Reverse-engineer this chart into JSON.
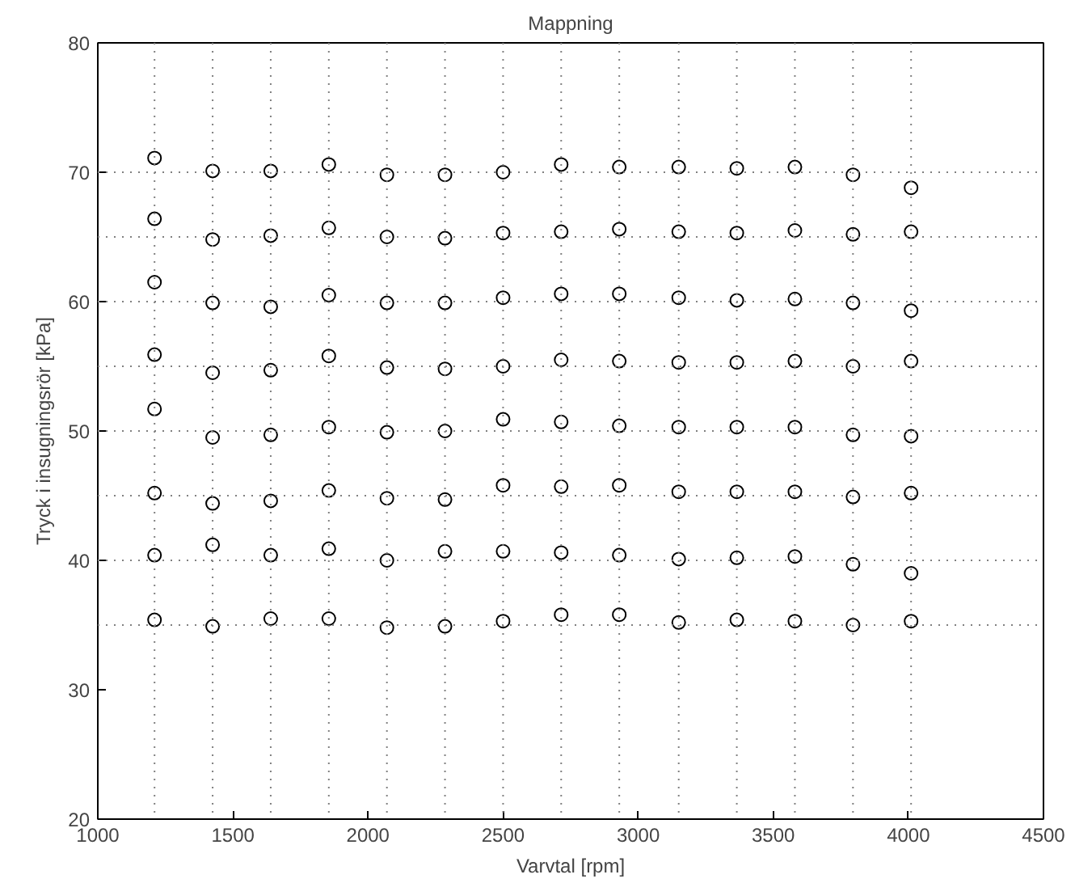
{
  "chart_data": {
    "type": "scatter",
    "title": "Mappning",
    "xlabel": "Varvtal [rpm]",
    "ylabel": "Tryck i insugningsrör [kPa]",
    "xlim": [
      1000,
      4500
    ],
    "xticks": [
      1000,
      1500,
      2000,
      2500,
      3000,
      3500,
      4000,
      4500
    ],
    "ylim": [
      20,
      80
    ],
    "yticks": [
      20,
      30,
      40,
      50,
      60,
      70,
      80
    ],
    "marker": "circle",
    "grid": false,
    "series": [
      {
        "color": "#000000",
        "x": [
          1210,
          1210,
          1210,
          1210,
          1210,
          1210,
          1210,
          1210,
          1425,
          1425,
          1425,
          1425,
          1425,
          1425,
          1425,
          1425,
          1640,
          1640,
          1640,
          1640,
          1640,
          1640,
          1640,
          1640,
          1855,
          1855,
          1855,
          1855,
          1855,
          1855,
          1855,
          1855,
          2070,
          2070,
          2070,
          2070,
          2070,
          2070,
          2070,
          2070,
          2285,
          2285,
          2285,
          2285,
          2285,
          2285,
          2285,
          2285,
          2500,
          2500,
          2500,
          2500,
          2500,
          2500,
          2500,
          2500,
          2715,
          2715,
          2715,
          2715,
          2715,
          2715,
          2715,
          2715,
          2930,
          2930,
          2930,
          2930,
          2930,
          2930,
          2930,
          2930,
          3150,
          3150,
          3150,
          3150,
          3150,
          3150,
          3150,
          3150,
          3365,
          3365,
          3365,
          3365,
          3365,
          3365,
          3365,
          3365,
          3580,
          3580,
          3580,
          3580,
          3580,
          3580,
          3580,
          3580,
          3795,
          3795,
          3795,
          3795,
          3795,
          3795,
          3795,
          3795,
          4010,
          4010,
          4010,
          4010,
          4010,
          4010,
          4010,
          4010
        ],
        "values": [
          71.1,
          66.4,
          61.5,
          55.9,
          51.7,
          45.2,
          40.4,
          35.4,
          70.1,
          64.8,
          59.9,
          54.5,
          49.5,
          44.4,
          41.2,
          34.9,
          70.1,
          65.1,
          59.6,
          54.7,
          49.7,
          44.6,
          40.4,
          35.5,
          70.6,
          65.7,
          60.5,
          55.8,
          50.3,
          45.4,
          40.9,
          35.5,
          69.8,
          65.0,
          59.9,
          54.9,
          49.9,
          44.8,
          40.0,
          34.8,
          69.8,
          64.9,
          59.9,
          54.8,
          50.0,
          44.7,
          40.7,
          34.9,
          70.0,
          65.3,
          60.3,
          55.0,
          50.9,
          45.8,
          40.7,
          35.3,
          70.6,
          65.4,
          60.6,
          55.5,
          50.7,
          45.7,
          40.6,
          35.8,
          70.4,
          65.6,
          60.6,
          55.4,
          50.4,
          45.8,
          40.4,
          35.8,
          70.4,
          65.4,
          60.3,
          55.3,
          50.3,
          45.3,
          40.1,
          35.2,
          70.3,
          65.3,
          60.1,
          55.3,
          50.3,
          45.3,
          40.2,
          35.4,
          70.4,
          65.5,
          60.2,
          55.4,
          50.3,
          45.3,
          40.3,
          35.3,
          69.8,
          65.2,
          59.9,
          55.0,
          49.7,
          44.9,
          39.7,
          35.0,
          68.8,
          65.4,
          59.3,
          55.4,
          49.6,
          45.2,
          39.0,
          35.3
        ]
      }
    ],
    "ref_lines": [
      {
        "axis": "x",
        "value": 1210,
        "color": "#808080",
        "line_style": "dotted"
      },
      {
        "axis": "x",
        "value": 1425,
        "color": "#808080",
        "line_style": "dotted"
      },
      {
        "axis": "x",
        "value": 1640,
        "color": "#808080",
        "line_style": "dotted"
      },
      {
        "axis": "x",
        "value": 1855,
        "color": "#808080",
        "line_style": "dotted"
      },
      {
        "axis": "x",
        "value": 2070,
        "color": "#808080",
        "line_style": "dotted"
      },
      {
        "axis": "x",
        "value": 2285,
        "color": "#808080",
        "line_style": "dotted"
      },
      {
        "axis": "x",
        "value": 2500,
        "color": "#808080",
        "line_style": "dotted"
      },
      {
        "axis": "x",
        "value": 2715,
        "color": "#808080",
        "line_style": "dotted"
      },
      {
        "axis": "x",
        "value": 2930,
        "color": "#808080",
        "line_style": "dotted"
      },
      {
        "axis": "x",
        "value": 3150,
        "color": "#808080",
        "line_style": "dotted"
      },
      {
        "axis": "x",
        "value": 3365,
        "color": "#808080",
        "line_style": "dotted"
      },
      {
        "axis": "x",
        "value": 3580,
        "color": "#808080",
        "line_style": "dotted"
      },
      {
        "axis": "x",
        "value": 3795,
        "color": "#808080",
        "line_style": "dotted"
      },
      {
        "axis": "x",
        "value": 4010,
        "color": "#808080",
        "line_style": "dotted"
      },
      {
        "axis": "y",
        "value": 35,
        "color": "#808080",
        "line_style": "dotted"
      },
      {
        "axis": "y",
        "value": 40,
        "color": "#808080",
        "line_style": "dotted"
      },
      {
        "axis": "y",
        "value": 45,
        "color": "#808080",
        "line_style": "dotted"
      },
      {
        "axis": "y",
        "value": 50,
        "color": "#808080",
        "line_style": "dotted"
      },
      {
        "axis": "y",
        "value": 55,
        "color": "#808080",
        "line_style": "dotted"
      },
      {
        "axis": "y",
        "value": 60,
        "color": "#808080",
        "line_style": "dotted"
      },
      {
        "axis": "y",
        "value": 65,
        "color": "#808080",
        "line_style": "dotted"
      },
      {
        "axis": "y",
        "value": 70,
        "color": "#808080",
        "line_style": "dotted"
      }
    ]
  }
}
